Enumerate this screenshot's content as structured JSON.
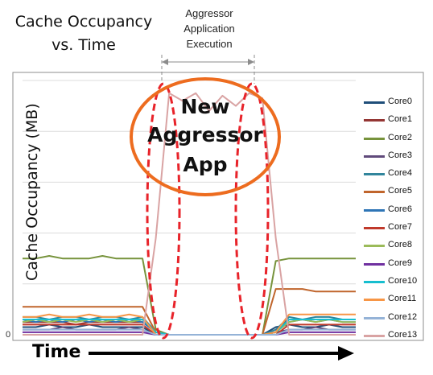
{
  "title_lines": [
    "Cache Occupancy",
    "vs. Time"
  ],
  "phase_label_lines": [
    "Aggressor",
    "Application",
    "Execution"
  ],
  "annotation_lines": [
    "New",
    "Aggressor",
    "App"
  ],
  "colors": {
    "annotation_ellipse": "#ed6c1f",
    "phase_ovals": "#e8232a",
    "arrow": "#000000",
    "plot_border": "#8c8c8c",
    "bracket": "#8c8c8c"
  },
  "chart_data": {
    "type": "line",
    "title": "Cache Occupancy vs. Time",
    "xlabel": "Time",
    "ylabel": "Cache Occupancy (MB)",
    "ytick_labels": [
      "0"
    ],
    "legend_position": "right",
    "grid": true,
    "ylim": [
      0,
      100
    ],
    "x": [
      0,
      4,
      8,
      12,
      16,
      20,
      24,
      28,
      32,
      36,
      40,
      44,
      48,
      52,
      56,
      60,
      64,
      68,
      72,
      76,
      80,
      84,
      88,
      92,
      96,
      100
    ],
    "aggressor_window": [
      39,
      75
    ],
    "series": [
      {
        "name": "Core0",
        "color": "#1f4e79",
        "values": [
          3,
          3,
          4,
          3,
          3,
          4,
          3,
          3,
          3,
          3,
          0,
          0,
          0,
          0,
          0,
          0,
          0,
          0,
          0,
          3,
          4,
          3,
          3,
          4,
          3,
          3
        ]
      },
      {
        "name": "Core1",
        "color": "#943634",
        "values": [
          5,
          5,
          5,
          5,
          4,
          5,
          5,
          5,
          5,
          5,
          1,
          0,
          0,
          0,
          0,
          0,
          0,
          0,
          0,
          2,
          6,
          6,
          6,
          6,
          6,
          6
        ]
      },
      {
        "name": "Core2",
        "color": "#77933c",
        "values": [
          30,
          30,
          31,
          30,
          30,
          30,
          31,
          30,
          30,
          30,
          2,
          0,
          0,
          0,
          0,
          0,
          0,
          0,
          0,
          29,
          30,
          30,
          30,
          30,
          30,
          30
        ]
      },
      {
        "name": "Core3",
        "color": "#604a7b",
        "values": [
          2,
          2,
          2,
          3,
          2,
          2,
          2,
          2,
          3,
          2,
          0,
          0,
          0,
          0,
          0,
          0,
          0,
          0,
          0,
          1,
          2,
          2,
          3,
          2,
          2,
          2
        ]
      },
      {
        "name": "Core4",
        "color": "#31859c",
        "values": [
          7,
          7,
          6,
          7,
          7,
          6,
          7,
          7,
          6,
          7,
          1,
          0,
          0,
          0,
          0,
          0,
          0,
          0,
          0,
          2,
          7,
          6,
          7,
          7,
          6,
          6
        ]
      },
      {
        "name": "Core5",
        "color": "#c0652c",
        "values": [
          11,
          11,
          11,
          11,
          11,
          11,
          11,
          11,
          11,
          11,
          1,
          0,
          0,
          0,
          0,
          0,
          0,
          0,
          0,
          18,
          18,
          18,
          17,
          17,
          17,
          17
        ]
      },
      {
        "name": "Core6",
        "color": "#2e75b6",
        "values": [
          6,
          5,
          6,
          5,
          6,
          5,
          6,
          5,
          6,
          5,
          1,
          0,
          0,
          0,
          0,
          0,
          0,
          0,
          0,
          1,
          5,
          6,
          5,
          6,
          5,
          5
        ]
      },
      {
        "name": "Core7",
        "color": "#c0392b",
        "values": [
          4,
          4,
          4,
          4,
          4,
          4,
          4,
          4,
          4,
          4,
          0,
          0,
          0,
          0,
          0,
          0,
          0,
          0,
          0,
          0,
          4,
          4,
          4,
          4,
          4,
          4
        ]
      },
      {
        "name": "Core8",
        "color": "#9bbb59",
        "values": [
          5,
          6,
          5,
          6,
          5,
          6,
          5,
          6,
          5,
          6,
          1,
          0,
          0,
          0,
          0,
          0,
          0,
          0,
          0,
          1,
          5,
          6,
          5,
          6,
          5,
          5
        ]
      },
      {
        "name": "Core9",
        "color": "#7030a0",
        "values": [
          1,
          1,
          1,
          1,
          1,
          1,
          1,
          1,
          1,
          1,
          0,
          0,
          0,
          0,
          0,
          0,
          0,
          0,
          0,
          0,
          1,
          1,
          1,
          1,
          1,
          1
        ]
      },
      {
        "name": "Core10",
        "color": "#17becf",
        "values": [
          6,
          6,
          6,
          6,
          6,
          6,
          6,
          6,
          6,
          6,
          1,
          0,
          0,
          0,
          0,
          0,
          0,
          0,
          0,
          1,
          6,
          6,
          6,
          6,
          6,
          6
        ]
      },
      {
        "name": "Core11",
        "color": "#f79646",
        "values": [
          7,
          7,
          8,
          7,
          7,
          8,
          7,
          7,
          8,
          7,
          0,
          0,
          0,
          0,
          0,
          0,
          0,
          0,
          0,
          1,
          8,
          8,
          8,
          8,
          8,
          8
        ]
      },
      {
        "name": "Core12",
        "color": "#95b3d7",
        "values": [
          2,
          2,
          2,
          2,
          2,
          2,
          2,
          2,
          2,
          2,
          0,
          0,
          0,
          0,
          0,
          0,
          0,
          0,
          0,
          0,
          2,
          2,
          2,
          2,
          2,
          2
        ]
      },
      {
        "name": "Core13",
        "color": "#d9a3a3",
        "values": [
          0,
          0,
          0,
          0,
          0,
          0,
          0,
          0,
          0,
          0,
          38,
          95,
          92,
          95,
          88,
          94,
          90,
          95,
          93,
          38,
          0,
          0,
          0,
          0,
          0,
          0
        ]
      }
    ]
  }
}
